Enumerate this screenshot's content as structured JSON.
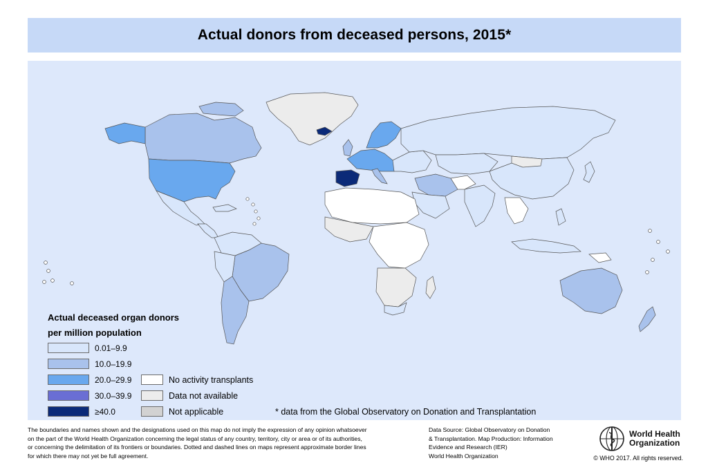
{
  "title": "Actual donors from deceased persons, 2015*",
  "colors": {
    "title_bg": "#c6d9f7",
    "ocean": "#dde8fb",
    "range_1": "#d8e6fb",
    "range_2": "#a9c2ec",
    "range_3": "#69a8ee",
    "range_4": "#6a6ed4",
    "range_5": "#0b2a78",
    "no_activity": "#ffffff",
    "not_available": "#ececec",
    "not_applicable": "#d2d2d2"
  },
  "legend": {
    "title_line1": "Actual deceased organ donors",
    "title_line2": "per million population",
    "ranges": [
      {
        "label": "0.01–9.9"
      },
      {
        "label": "10.0–19.9"
      },
      {
        "label": "20.0–29.9"
      },
      {
        "label": "30.0–39.9"
      },
      {
        "label": "≥40.0"
      }
    ],
    "other": [
      {
        "label": "No activity transplants"
      },
      {
        "label": "Data not available"
      },
      {
        "label": "Not applicable"
      }
    ]
  },
  "note": "* data from the Global Observatory on Donation and Transplantation",
  "footer": {
    "disclaimer_lines": [
      "The boundaries and names shown and the designations used on this map do not imply the expression of any opinion whatsoever",
      "on the part of the World Health Organization concerning the legal status of any country, territory, city or area or of its authorities,",
      "or concerning the delimitation of its frontiers or boundaries.  Dotted and dashed lines on maps represent approximate border lines",
      "for which there may not yet be full agreement."
    ],
    "source_lines": [
      "Data Source: Global Observatory on Donation",
      "& Transplantation. Map Production: Information",
      "Evidence and Research (IER)",
      "World Health Organization"
    ],
    "org_line1": "World Health",
    "org_line2": "Organization",
    "copyright": "© WHO 2017. All rights reserved."
  }
}
